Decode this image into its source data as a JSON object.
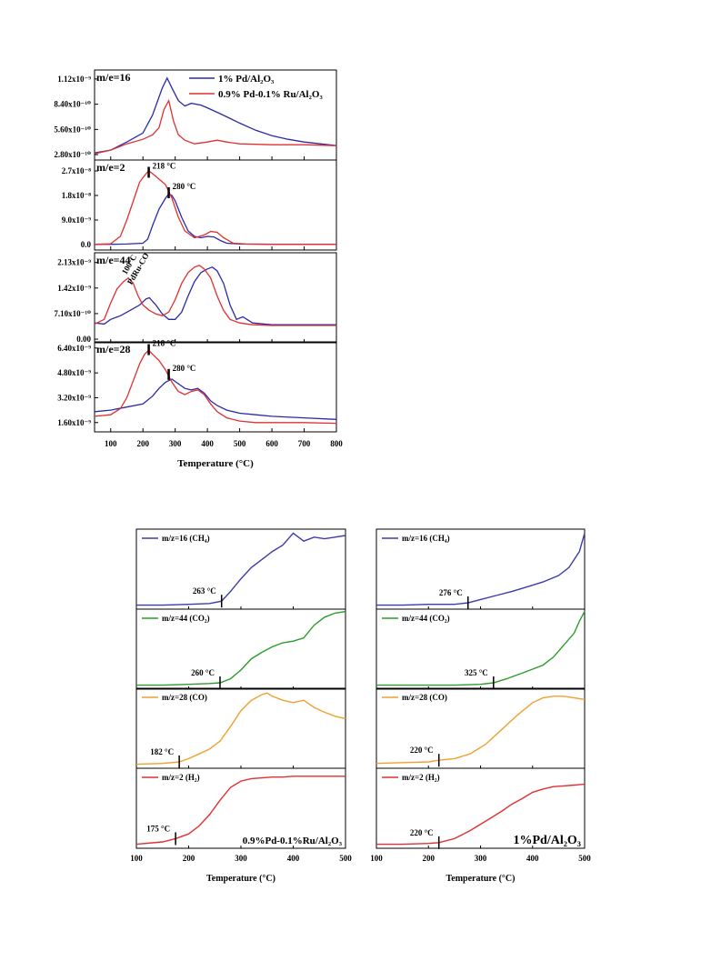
{
  "figure1": {
    "xlabel": "Temperature (°C)",
    "xticks": [
      100,
      200,
      300,
      400,
      500,
      600,
      700,
      800
    ],
    "xlim": [
      50,
      800
    ],
    "legend": [
      {
        "label": "1% Pd/Al₂O₃",
        "color": "#2a2aa8"
      },
      {
        "label": "0.9% Pd-0.1% Ru/Al₂O₃",
        "color": "#e03030"
      }
    ],
    "panels": [
      {
        "label": "m/e=16",
        "yticks": [
          "1.12x10⁻⁹",
          "8.40x10⁻¹⁰",
          "5.60x10⁻¹⁰",
          "2.80x10⁻¹⁰"
        ],
        "ytick_values": [
          1.12,
          0.84,
          0.56,
          0.28
        ],
        "ylim": [
          0.22,
          1.22
        ],
        "annotations": [],
        "series": [
          {
            "name": "1% Pd/Al₂O₃",
            "color": "#2a2aa8",
            "x": [
              50,
              100,
              150,
              200,
              230,
              260,
              275,
              290,
              310,
              330,
              350,
              380,
              400,
              430,
              460,
              500,
              550,
              600,
              650,
              700,
              750,
              800
            ],
            "y": [
              0.3,
              0.33,
              0.42,
              0.52,
              0.72,
              1.02,
              1.13,
              1.02,
              0.88,
              0.82,
              0.85,
              0.83,
              0.8,
              0.75,
              0.7,
              0.63,
              0.55,
              0.49,
              0.45,
              0.42,
              0.4,
              0.38
            ]
          },
          {
            "name": "0.9% Pd-0.1% Ru/Al₂O₃",
            "color": "#e03030",
            "x": [
              50,
              100,
              150,
              200,
              230,
              250,
              265,
              280,
              295,
              310,
              330,
              360,
              380,
              400,
              430,
              460,
              500,
              600,
              700,
              800
            ],
            "y": [
              0.29,
              0.33,
              0.4,
              0.45,
              0.5,
              0.58,
              0.78,
              0.88,
              0.65,
              0.5,
              0.44,
              0.4,
              0.41,
              0.42,
              0.44,
              0.42,
              0.4,
              0.39,
              0.39,
              0.38
            ]
          }
        ]
      },
      {
        "label": "m/e=2",
        "yticks": [
          "2.7x10⁻⁸",
          "1.8x10⁻⁸",
          "9.0x10⁻⁹",
          "0.0"
        ],
        "ytick_values": [
          2.7,
          1.8,
          0.9,
          0.0
        ],
        "ylim": [
          -0.2,
          3.1
        ],
        "annotations": [
          {
            "text": "218 °C",
            "x": 218,
            "y": 2.65
          },
          {
            "text": "280 °C",
            "x": 280,
            "y": 1.9
          }
        ],
        "series": [
          {
            "name": "1% Pd/Al₂O₃",
            "color": "#2a2aa8",
            "x": [
              50,
              100,
              150,
              200,
              215,
              230,
              250,
              270,
              280,
              290,
              300,
              320,
              340,
              360,
              380,
              400,
              420,
              440,
              460,
              500,
              600,
              700,
              800
            ],
            "y": [
              0.01,
              0.01,
              0.02,
              0.05,
              0.2,
              0.7,
              1.3,
              1.7,
              1.85,
              1.8,
              1.6,
              1.0,
              0.5,
              0.3,
              0.25,
              0.3,
              0.28,
              0.15,
              0.05,
              0.02,
              0.01,
              0.01,
              0.01
            ]
          },
          {
            "name": "0.9% Pd-0.1% Ru/Al₂O₃",
            "color": "#e03030",
            "x": [
              50,
              100,
              130,
              150,
              170,
              190,
              210,
              218,
              230,
              250,
              270,
              290,
              310,
              330,
              360,
              390,
              410,
              430,
              450,
              480,
              520,
              600,
              700,
              800
            ],
            "y": [
              0.01,
              0.03,
              0.3,
              0.9,
              1.6,
              2.3,
              2.6,
              2.7,
              2.6,
              2.4,
              2.2,
              1.7,
              1.0,
              0.5,
              0.25,
              0.35,
              0.48,
              0.45,
              0.25,
              0.05,
              0.02,
              0.01,
              0.01,
              0.01
            ]
          }
        ]
      },
      {
        "label": "m/e=44",
        "yticks": [
          "2.13x10⁻⁹",
          "1.42x10⁻⁹",
          "7.10x10⁻¹⁰",
          "0.00"
        ],
        "ytick_values": [
          2.13,
          1.42,
          0.71,
          0.0
        ],
        "ylim": [
          -0.1,
          2.4
        ],
        "annotations": [
          {
            "text": "100°C",
            "x": 148,
            "y": 1.78,
            "rotate": true
          },
          {
            "text": "PdRu-CO",
            "x": 165,
            "y": 1.5,
            "rotate": true
          }
        ],
        "series": [
          {
            "name": "1% Pd/Al₂O₃",
            "color": "#2a2aa8",
            "x": [
              50,
              80,
              100,
              130,
              160,
              190,
              210,
              220,
              240,
              260,
              280,
              300,
              320,
              340,
              360,
              380,
              400,
              415,
              430,
              450,
              470,
              490,
              510,
              540,
              600,
              700,
              800
            ],
            "y": [
              0.45,
              0.42,
              0.55,
              0.65,
              0.8,
              0.95,
              1.12,
              1.15,
              0.95,
              0.7,
              0.55,
              0.55,
              0.75,
              1.2,
              1.6,
              1.85,
              1.95,
              2.0,
              1.9,
              1.55,
              0.95,
              0.55,
              0.62,
              0.45,
              0.4,
              0.4,
              0.4
            ]
          },
          {
            "name": "0.9% Pd-0.1% Ru/Al₂O₃",
            "color": "#e03030",
            "x": [
              50,
              80,
              100,
              120,
              140,
              155,
              170,
              185,
              200,
              220,
              240,
              260,
              280,
              300,
              320,
              340,
              360,
              375,
              390,
              410,
              430,
              450,
              470,
              500,
              540,
              600,
              700,
              800
            ],
            "y": [
              0.42,
              0.55,
              1.0,
              1.4,
              1.6,
              1.7,
              1.55,
              1.2,
              0.95,
              0.8,
              0.7,
              0.65,
              0.75,
              1.1,
              1.55,
              1.85,
              2.0,
              2.05,
              1.95,
              1.7,
              1.2,
              0.8,
              0.55,
              0.45,
              0.4,
              0.38,
              0.38,
              0.38
            ]
          }
        ]
      },
      {
        "label": "m/e=28",
        "yticks": [
          "6.40x10⁻⁹",
          "4.80x10⁻⁹",
          "3.20x10⁻⁹",
          "1.60x10⁻⁹"
        ],
        "ytick_values": [
          6.4,
          4.8,
          3.2,
          1.6
        ],
        "ylim": [
          1.0,
          6.8
        ],
        "annotations": [
          {
            "text": "218 °C",
            "x": 218,
            "y": 6.3
          },
          {
            "text": "280 °C",
            "x": 280,
            "y": 4.7
          }
        ],
        "series": [
          {
            "name": "1% Pd/Al₂O₃",
            "color": "#2a2aa8",
            "x": [
              50,
              100,
              150,
              200,
              230,
              250,
              270,
              280,
              290,
              310,
              330,
              350,
              370,
              390,
              410,
              430,
              460,
              500,
              550,
              600,
              700,
              800
            ],
            "y": [
              2.3,
              2.4,
              2.6,
              2.8,
              3.3,
              3.8,
              4.2,
              4.3,
              4.4,
              4.1,
              3.8,
              3.7,
              3.8,
              3.5,
              3.0,
              2.7,
              2.4,
              2.2,
              2.1,
              2.0,
              1.9,
              1.8
            ]
          },
          {
            "name": "0.9% Pd-0.1% Ru/Al₂O₃",
            "color": "#e03030",
            "x": [
              50,
              100,
              130,
              150,
              170,
              190,
              205,
              218,
              230,
              250,
              270,
              290,
              310,
              330,
              350,
              370,
              390,
              410,
              430,
              460,
              500,
              550,
              600,
              700,
              800
            ],
            "y": [
              2.0,
              2.1,
              2.5,
              3.2,
              4.3,
              5.4,
              6.0,
              6.25,
              6.0,
              5.6,
              5.0,
              4.2,
              3.6,
              3.4,
              3.6,
              3.7,
              3.4,
              2.8,
              2.3,
              1.9,
              1.7,
              1.6,
              1.6,
              1.6,
              1.55
            ]
          }
        ]
      }
    ]
  },
  "figure2": {
    "xlabel": "Temperature (°C)",
    "xticks": [
      100,
      200,
      300,
      400,
      500
    ],
    "xlim": [
      100,
      500
    ],
    "columns": [
      {
        "catalyst_label": "0.9%Pd-0.1%Ru/Al₂O₃",
        "panels": [
          {
            "label": "m/z=16 (CH₄)",
            "color": "#3b3bb0",
            "onset_label": "263 °C",
            "onset": 263,
            "x": [
              100,
              150,
              200,
              240,
              263,
              280,
              300,
              320,
              340,
              360,
              380,
              400,
              420,
              440,
              460,
              480,
              500
            ],
            "y": [
              0.05,
              0.05,
              0.06,
              0.07,
              0.1,
              0.22,
              0.38,
              0.52,
              0.62,
              0.72,
              0.8,
              0.95,
              0.85,
              0.9,
              0.88,
              0.9,
              0.92
            ]
          },
          {
            "label": "m/z=44 (CO₂)",
            "color": "#2a9d2a",
            "onset_label": "260 °C",
            "onset": 260,
            "x": [
              100,
              150,
              200,
              240,
              260,
              280,
              300,
              320,
              340,
              360,
              380,
              400,
              420,
              440,
              460,
              480,
              500
            ],
            "y": [
              0.05,
              0.05,
              0.06,
              0.07,
              0.08,
              0.13,
              0.24,
              0.38,
              0.46,
              0.53,
              0.58,
              0.6,
              0.64,
              0.8,
              0.9,
              0.95,
              0.97
            ]
          },
          {
            "label": "m/z=28 (CO)",
            "color": "#f0a030",
            "onset_label": "182 °C",
            "onset": 182,
            "x": [
              100,
              150,
              182,
              200,
              220,
              240,
              260,
              280,
              300,
              320,
              340,
              350,
              360,
              380,
              400,
              420,
              440,
              460,
              480,
              500
            ],
            "y": [
              0.05,
              0.06,
              0.08,
              0.12,
              0.18,
              0.24,
              0.34,
              0.52,
              0.72,
              0.85,
              0.92,
              0.94,
              0.9,
              0.85,
              0.82,
              0.85,
              0.76,
              0.7,
              0.65,
              0.62
            ]
          },
          {
            "label": "m/z=2 (H₂)",
            "color": "#e03030",
            "onset_label": "175 °C",
            "onset": 175,
            "x": [
              100,
              150,
              175,
              200,
              220,
              240,
              260,
              280,
              300,
              320,
              340,
              360,
              380,
              400,
              450,
              500
            ],
            "y": [
              0.05,
              0.08,
              0.12,
              0.18,
              0.28,
              0.42,
              0.6,
              0.76,
              0.84,
              0.87,
              0.88,
              0.89,
              0.89,
              0.9,
              0.9,
              0.9
            ]
          }
        ]
      },
      {
        "catalyst_label": "1%Pd/Al₂O₃",
        "panels": [
          {
            "label": "m/z=16 (CH₄)",
            "color": "#3b3bb0",
            "onset_label": "276 °C",
            "onset": 276,
            "x": [
              100,
              150,
              200,
              250,
              276,
              300,
              330,
              360,
              390,
              420,
              450,
              470,
              490,
              500
            ],
            "y": [
              0.05,
              0.05,
              0.06,
              0.06,
              0.08,
              0.12,
              0.17,
              0.22,
              0.28,
              0.34,
              0.42,
              0.52,
              0.72,
              0.95
            ]
          },
          {
            "label": "m/z=44 (CO₂)",
            "color": "#2a9d2a",
            "onset_label": "325 °C",
            "onset": 325,
            "x": [
              100,
              150,
              200,
              250,
              300,
              325,
              350,
              380,
              400,
              420,
              440,
              460,
              480,
              490,
              500
            ],
            "y": [
              0.05,
              0.05,
              0.05,
              0.05,
              0.06,
              0.08,
              0.13,
              0.2,
              0.25,
              0.3,
              0.4,
              0.55,
              0.7,
              0.85,
              0.97
            ]
          },
          {
            "label": "m/z=28 (CO)",
            "color": "#f0a030",
            "onset_label": "220 °C",
            "onset": 220,
            "x": [
              100,
              150,
              200,
              220,
              250,
              280,
              310,
              340,
              370,
              400,
              420,
              440,
              460,
              480,
              500
            ],
            "y": [
              0.06,
              0.07,
              0.08,
              0.1,
              0.12,
              0.18,
              0.3,
              0.48,
              0.66,
              0.82,
              0.88,
              0.9,
              0.9,
              0.88,
              0.86
            ]
          },
          {
            "label": "m/z=2 (H₂)",
            "color": "#e03030",
            "onset_label": "220 °C",
            "onset": 220,
            "x": [
              100,
              150,
              200,
              220,
              250,
              280,
              300,
              320,
              340,
              360,
              380,
              400,
              420,
              440,
              460,
              480,
              500
            ],
            "y": [
              0.05,
              0.05,
              0.06,
              0.07,
              0.12,
              0.22,
              0.3,
              0.38,
              0.46,
              0.55,
              0.62,
              0.7,
              0.74,
              0.77,
              0.78,
              0.79,
              0.8
            ]
          }
        ]
      }
    ]
  },
  "chart_data": [
    {
      "type": "line",
      "title": "",
      "xlabel": "Temperature (°C)",
      "ylabel": "",
      "xlim": [
        50,
        800
      ],
      "panels": [
        "m/e=16",
        "m/e=2",
        "m/e=44",
        "m/e=28"
      ],
      "series_names": [
        "1% Pd/Al₂O₃",
        "0.9% Pd-0.1% Ru/Al₂O₃"
      ],
      "note_peaks": {
        "m/e=2": [
          218,
          280
        ],
        "m/e=28": [
          218,
          280
        ],
        "m/e=44": [
          100
        ]
      }
    },
    {
      "type": "line",
      "title": "",
      "xlabel": "Temperature (°C)",
      "xlim": [
        100,
        500
      ],
      "panels": [
        "m/z=16 (CH₄)",
        "m/z=44 (CO₂)",
        "m/z=28 (CO)",
        "m/z=2 (H₂)"
      ],
      "onsets": {
        "0.9%Pd-0.1%Ru/Al₂O₃": {
          "CH4": 263,
          "CO2": 260,
          "CO": 182,
          "H2": 175
        },
        "1%Pd/Al₂O₃": {
          "CH4": 276,
          "CO2": 325,
          "CO": 220,
          "H2": 220
        }
      }
    }
  ]
}
